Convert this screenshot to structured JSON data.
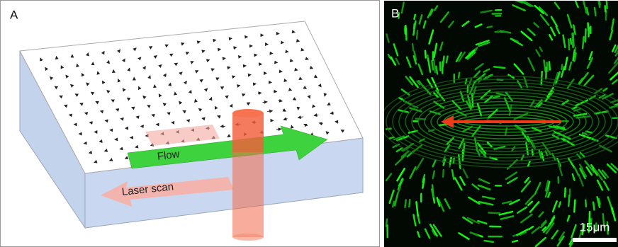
{
  "panels": [
    {
      "label": "A",
      "flow_label": "Flow",
      "scan_label": "Laser scan"
    },
    {
      "label": "B",
      "scale_bar": "15μm"
    }
  ]
}
